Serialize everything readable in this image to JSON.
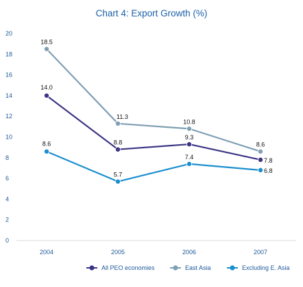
{
  "chart_data": {
    "type": "line",
    "title": "Chart 4: Export Growth (%)",
    "xlabel": "",
    "ylabel": "",
    "categories": [
      "2004",
      "2005",
      "2006",
      "2007"
    ],
    "ylim": [
      0,
      20
    ],
    "yticks": [
      0,
      2,
      4,
      6,
      8,
      10,
      12,
      14,
      16,
      18,
      20
    ],
    "grid": false,
    "legend_position": "bottom-right",
    "series": [
      {
        "name": "All PEO economies",
        "values": [
          14.0,
          8.8,
          9.3,
          7.8
        ],
        "labels": [
          "14.0",
          "8.8",
          "9.3",
          "7.8"
        ],
        "color": "#3b3584"
      },
      {
        "name": "East Asia",
        "values": [
          18.5,
          11.3,
          10.8,
          8.6
        ],
        "labels": [
          "18.5",
          "11.3",
          "10.8",
          "8.6"
        ],
        "color": "#7f9fb3"
      },
      {
        "name": "Excluding E. Asia",
        "values": [
          8.6,
          5.7,
          7.4,
          6.8
        ],
        "labels": [
          "8.6",
          "5.7",
          "7.4",
          "6.8"
        ],
        "color": "#1a8fcf"
      }
    ]
  }
}
